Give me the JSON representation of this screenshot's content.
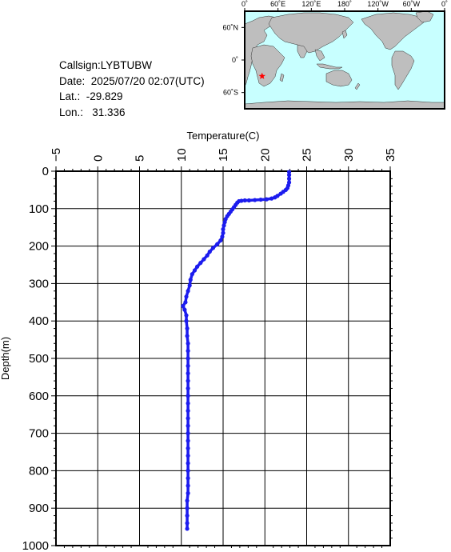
{
  "info": {
    "callsign": "Callsign:LYBTUBW",
    "date": "Date:  2025/07/20 02:07(UTC)",
    "lat": "Lat.:  -29.829",
    "lon": "Lon.:   31.336"
  },
  "map": {
    "lon_labels": [
      "0˚",
      "60˚E",
      "120˚E",
      "180˚",
      "120˚W",
      "60˚W",
      "0˚"
    ],
    "lat_labels": [
      "60˚N",
      "0˚",
      "60˚S"
    ],
    "marker": {
      "lat": -29.829,
      "lon": 31.336
    },
    "ocean_color": "#c8ffff",
    "land_color": "#bebebe",
    "marker_color": "#ff0000"
  },
  "chart_data": {
    "type": "scatter",
    "xlabel": "Temperature(C)",
    "ylabel": "Depth(m)",
    "xlim": [
      -5,
      35
    ],
    "ylim": [
      0,
      1000
    ],
    "y_inverted": true,
    "xticks": [
      "-5",
      "0",
      "5",
      "10",
      "15",
      "20",
      "25",
      "30",
      "35"
    ],
    "yticks": [
      "0",
      "100",
      "200",
      "300",
      "400",
      "500",
      "600",
      "700",
      "800",
      "900",
      "1000"
    ],
    "grid": true,
    "series_color": "#1c1cee",
    "series": [
      {
        "points": [
          [
            22.9,
            2
          ],
          [
            22.9,
            10
          ],
          [
            22.9,
            20
          ],
          [
            22.9,
            30
          ],
          [
            22.8,
            38
          ],
          [
            22.7,
            45
          ],
          [
            22.5,
            50
          ],
          [
            22.2,
            55
          ],
          [
            21.9,
            60
          ],
          [
            21.5,
            66
          ],
          [
            21.2,
            70
          ],
          [
            20.8,
            73
          ],
          [
            20.2,
            75
          ],
          [
            19.5,
            76
          ],
          [
            18.8,
            77
          ],
          [
            18.1,
            78
          ],
          [
            17.6,
            78
          ],
          [
            17.2,
            79
          ],
          [
            16.9,
            80
          ],
          [
            16.7,
            84
          ],
          [
            16.5,
            90
          ],
          [
            16.3,
            96
          ],
          [
            16.1,
            102
          ],
          [
            15.9,
            108
          ],
          [
            15.7,
            114
          ],
          [
            15.5,
            120
          ],
          [
            15.3,
            128
          ],
          [
            15.2,
            136
          ],
          [
            15.1,
            145
          ],
          [
            15.0,
            155
          ],
          [
            15.0,
            165
          ],
          [
            14.9,
            175
          ],
          [
            14.7,
            185
          ],
          [
            14.3,
            195
          ],
          [
            13.8,
            205
          ],
          [
            13.4,
            215
          ],
          [
            13.1,
            225
          ],
          [
            12.7,
            235
          ],
          [
            12.3,
            245
          ],
          [
            11.9,
            255
          ],
          [
            11.6,
            265
          ],
          [
            11.3,
            275
          ],
          [
            11.1,
            290
          ],
          [
            11.0,
            305
          ],
          [
            10.8,
            320
          ],
          [
            10.6,
            335
          ],
          [
            10.5,
            350
          ],
          [
            10.2,
            360
          ],
          [
            10.4,
            370
          ],
          [
            10.6,
            385
          ],
          [
            10.6,
            400
          ],
          [
            10.7,
            420
          ],
          [
            10.7,
            440
          ],
          [
            10.8,
            460
          ],
          [
            10.8,
            480
          ],
          [
            10.8,
            500
          ],
          [
            10.8,
            520
          ],
          [
            10.8,
            540
          ],
          [
            10.8,
            560
          ],
          [
            10.8,
            580
          ],
          [
            10.8,
            600
          ],
          [
            10.8,
            620
          ],
          [
            10.8,
            640
          ],
          [
            10.8,
            660
          ],
          [
            10.8,
            680
          ],
          [
            10.8,
            700
          ],
          [
            10.8,
            720
          ],
          [
            10.8,
            740
          ],
          [
            10.8,
            760
          ],
          [
            10.8,
            780
          ],
          [
            10.8,
            800
          ],
          [
            10.8,
            820
          ],
          [
            10.8,
            840
          ],
          [
            10.8,
            860
          ],
          [
            10.7,
            880
          ],
          [
            10.7,
            900
          ],
          [
            10.7,
            920
          ],
          [
            10.7,
            940
          ],
          [
            10.7,
            955
          ]
        ]
      }
    ]
  }
}
